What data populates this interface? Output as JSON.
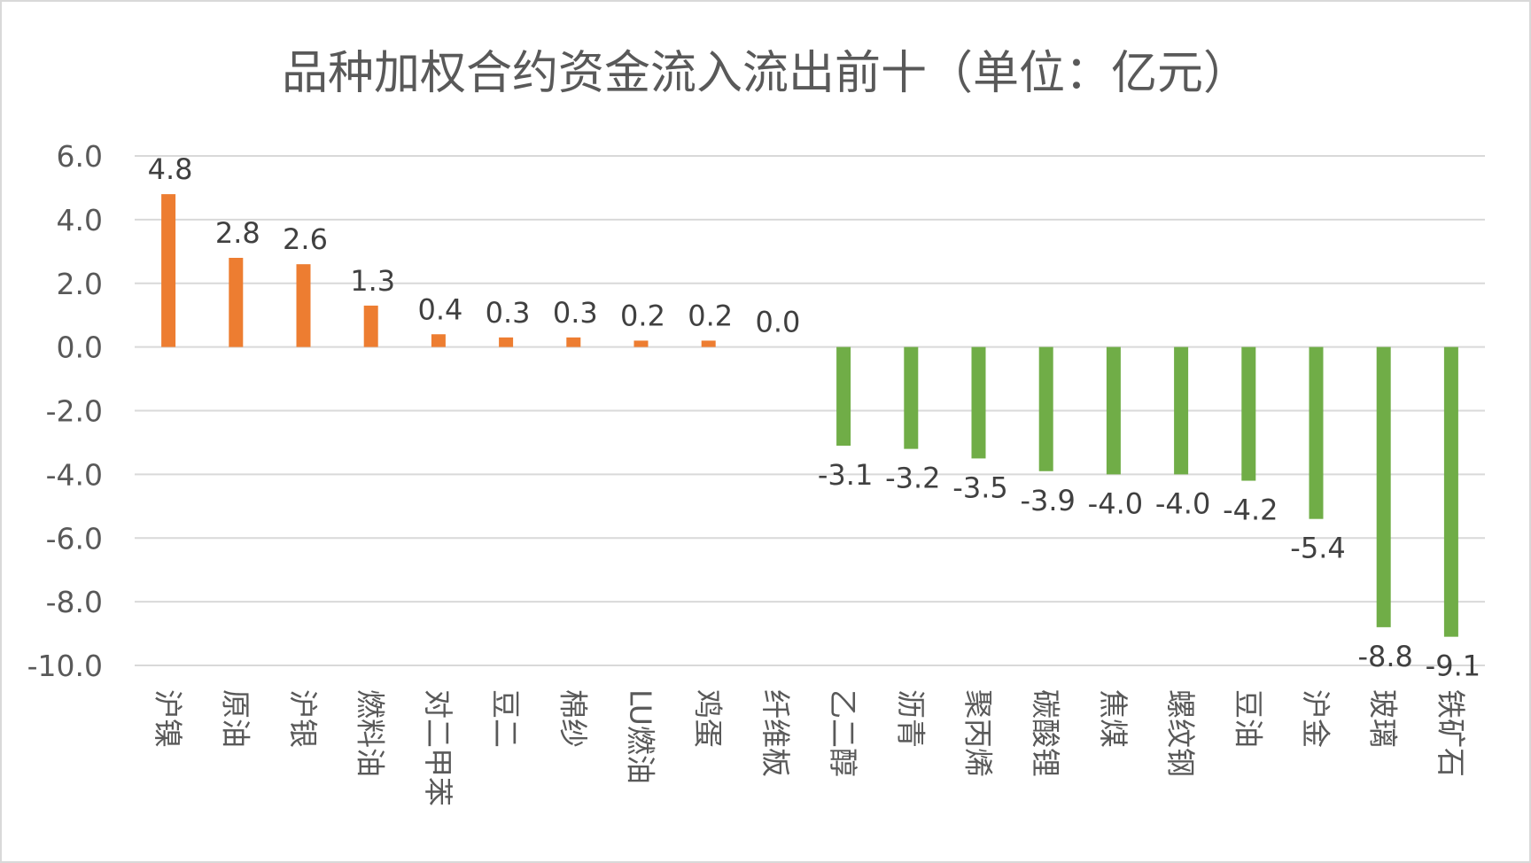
{
  "chart_data": {
    "type": "bar",
    "title": "品种加权合约资金流入流出前十（单位：亿元）",
    "xlabel": "",
    "ylabel": "",
    "ylim": [
      -10,
      6
    ],
    "y_ticks": [
      6,
      4,
      2,
      0,
      -2,
      -4,
      -6,
      -8,
      -10
    ],
    "y_tick_labels": [
      "6.0",
      "4.0",
      "2.0",
      "0.0",
      "-2.0",
      "-4.0",
      "-6.0",
      "-8.0",
      "-10.0"
    ],
    "grid": true,
    "legend": "none",
    "categories": [
      "沪镍",
      "原油",
      "沪银",
      "燃料油",
      "对二甲苯",
      "豆二",
      "棉纱",
      "LU燃油",
      "鸡蛋",
      "纤维板",
      "乙二醇",
      "沥青",
      "聚丙烯",
      "碳酸锂",
      "焦煤",
      "螺纹钢",
      "豆油",
      "沪金",
      "玻璃",
      "铁矿石"
    ],
    "values": [
      4.8,
      2.8,
      2.6,
      1.3,
      0.4,
      0.3,
      0.3,
      0.2,
      0.2,
      0.0,
      -3.1,
      -3.2,
      -3.5,
      -3.9,
      -4.0,
      -4.0,
      -4.2,
      -5.4,
      -8.8,
      -9.1
    ],
    "data_labels": [
      "4.8",
      "2.8",
      "2.6",
      "1.3",
      "0.4",
      "0.3",
      "0.3",
      "0.2",
      "0.2",
      "0.0",
      "-3.1",
      "-3.2",
      "-3.5",
      "-3.9",
      "-4.0",
      "-4.0",
      "-4.2",
      "-5.4",
      "-8.8",
      "-9.1"
    ],
    "colors": {
      "inflow": "#ED7D31",
      "outflow": "#70AD47"
    }
  }
}
